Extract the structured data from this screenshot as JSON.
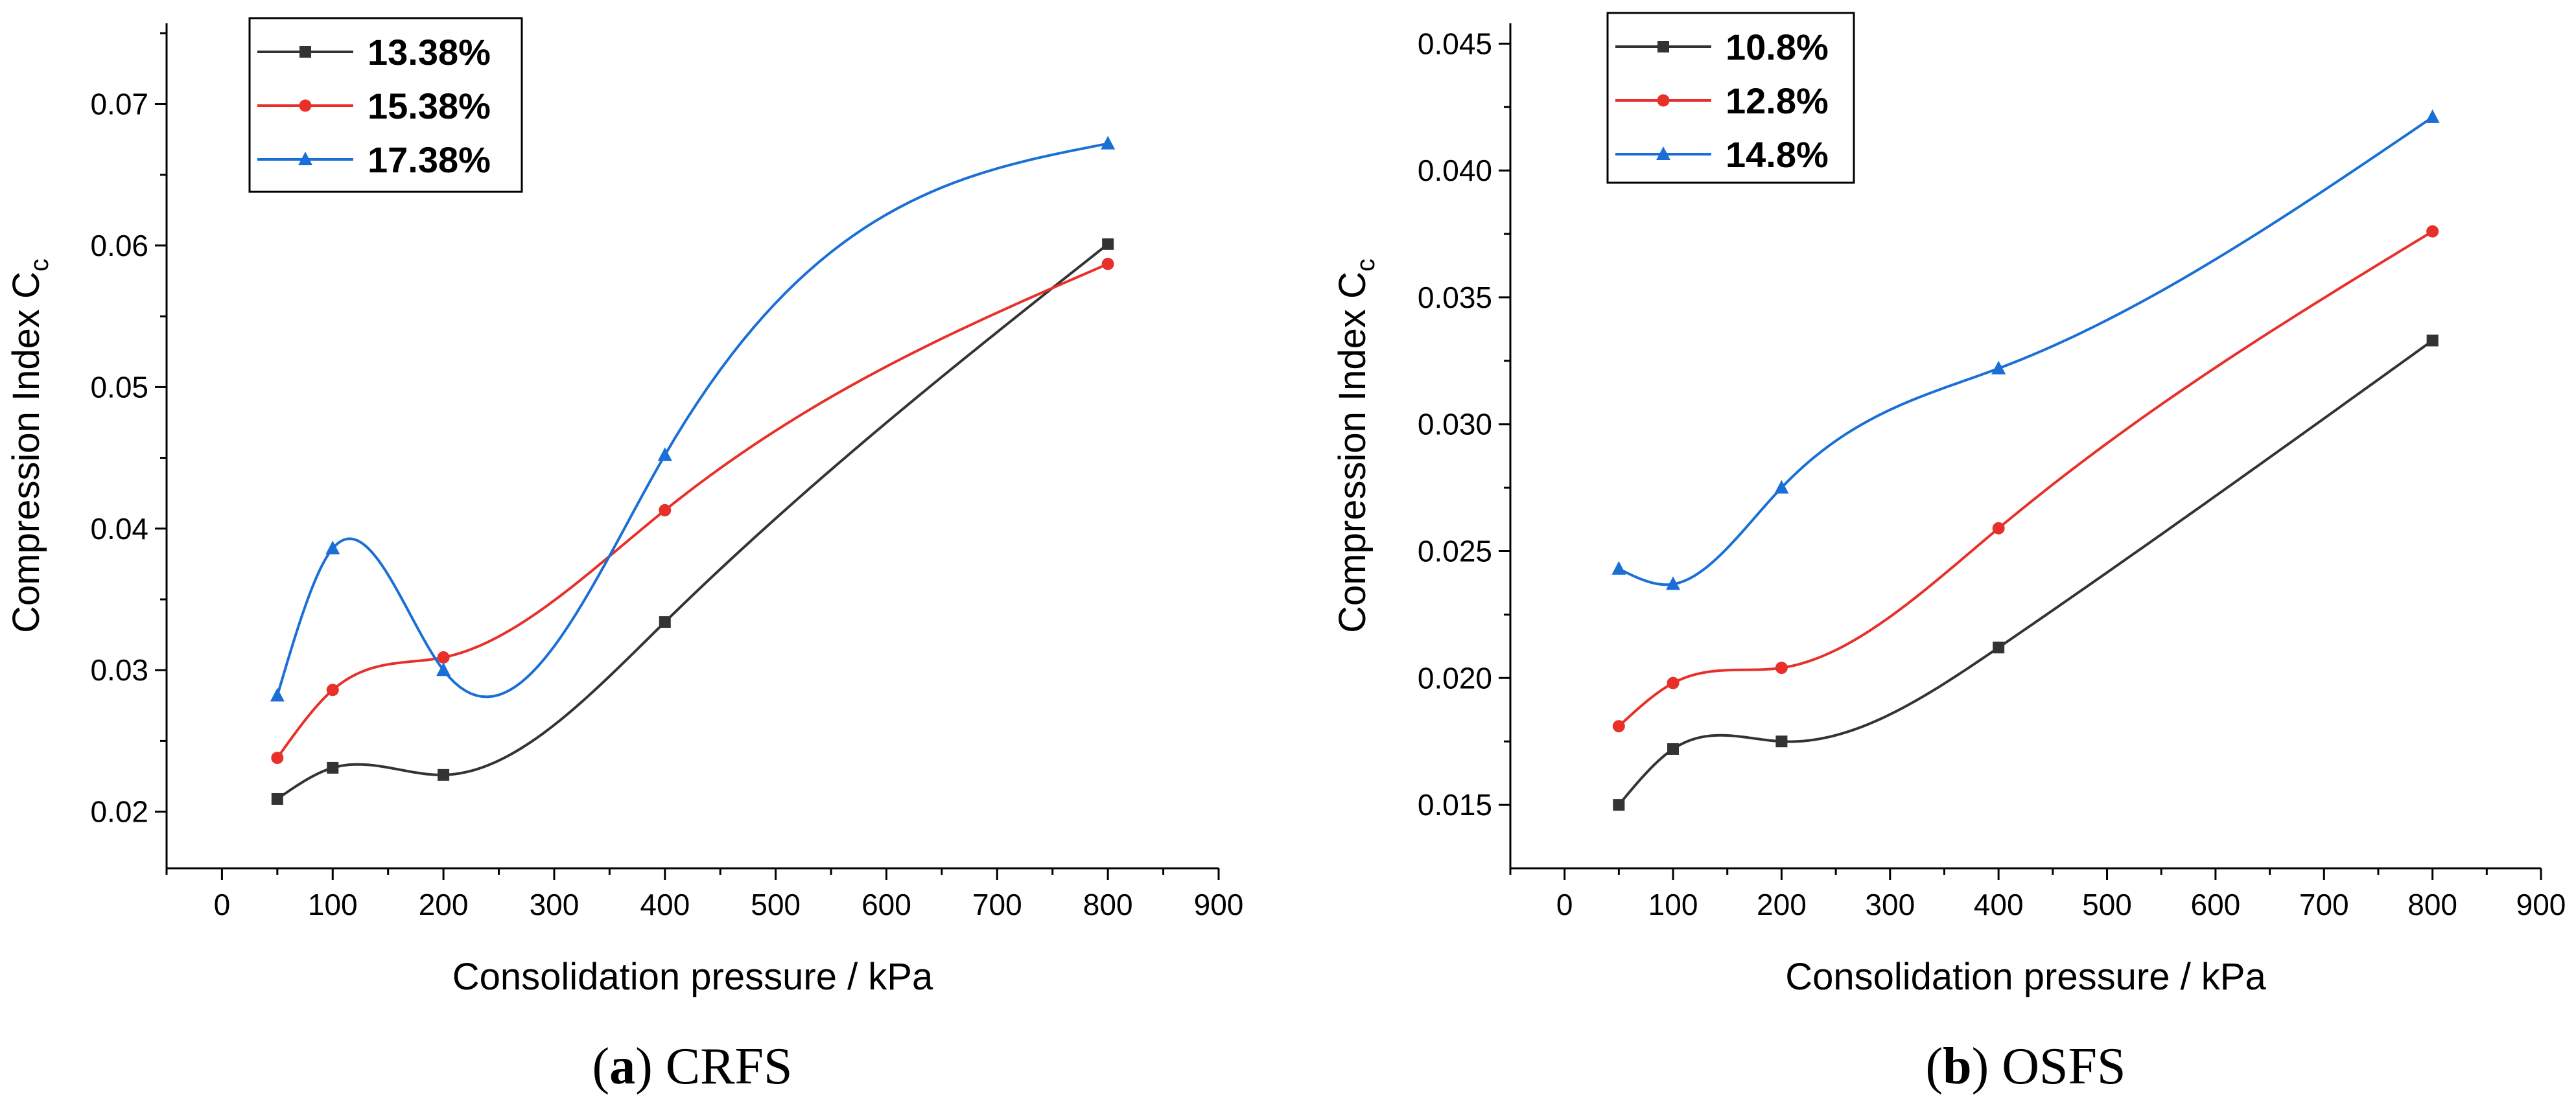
{
  "chart_data": [
    {
      "type": "line",
      "x": [
        50,
        100,
        200,
        400,
        800
      ],
      "xlabel": "Consolidation pressure / kPa",
      "ylabel": "Compression Index C",
      "ylabel_sub": "c",
      "xlim": [
        -50,
        900
      ],
      "ylim": [
        0.016,
        0.0757
      ],
      "xticks": [
        0,
        100,
        200,
        300,
        400,
        500,
        600,
        700,
        800,
        900
      ],
      "xtick_labels": [
        "0",
        "100",
        "200",
        "300",
        "400",
        "500",
        "600",
        "700",
        "800",
        "900"
      ],
      "yticks": [
        0.02,
        0.03,
        0.04,
        0.05,
        0.06,
        0.07
      ],
      "ytick_labels": [
        "0.02",
        "0.03",
        "0.04",
        "0.05",
        "0.06",
        "0.07"
      ],
      "legend_position": "top-left",
      "series": [
        {
          "name": "13.38%",
          "color": "#333333",
          "marker": "square",
          "values": [
            0.0209,
            0.0231,
            0.0226,
            0.0334,
            0.0601
          ]
        },
        {
          "name": "15.38%",
          "color": "#e8302a",
          "marker": "circle",
          "values": [
            0.0238,
            0.0286,
            0.0309,
            0.0413,
            0.0587
          ]
        },
        {
          "name": "17.38%",
          "color": "#1a6fd6",
          "marker": "triangle",
          "values": [
            0.0282,
            0.0386,
            0.03,
            0.0452,
            0.0672
          ]
        }
      ],
      "caption_letter": "a",
      "caption_text": "CRFS"
    },
    {
      "type": "line",
      "x": [
        50,
        100,
        200,
        400,
        800
      ],
      "xlabel": "Consolidation pressure / kPa",
      "ylabel": "Compression Index C",
      "ylabel_sub": "c",
      "xlim": [
        -50,
        900
      ],
      "ylim": [
        0.0125,
        0.0458
      ],
      "xticks": [
        0,
        100,
        200,
        300,
        400,
        500,
        600,
        700,
        800,
        900
      ],
      "xtick_labels": [
        "0",
        "100",
        "200",
        "300",
        "400",
        "500",
        "600",
        "700",
        "800",
        "900"
      ],
      "yticks": [
        0.015,
        0.02,
        0.025,
        0.03,
        0.035,
        0.04,
        0.045
      ],
      "ytick_labels": [
        "0.015",
        "0.020",
        "0.025",
        "0.030",
        "0.035",
        "0.040",
        "0.045"
      ],
      "legend_position": "top-left",
      "series": [
        {
          "name": "10.8%",
          "color": "#333333",
          "marker": "square",
          "values": [
            0.015,
            0.0172,
            0.0175,
            0.0212,
            0.0333
          ]
        },
        {
          "name": "12.8%",
          "color": "#e8302a",
          "marker": "circle",
          "values": [
            0.0181,
            0.0198,
            0.0204,
            0.0259,
            0.0376
          ]
        },
        {
          "name": "14.8%",
          "color": "#1a6fd6",
          "marker": "triangle",
          "values": [
            0.0243,
            0.0237,
            0.0275,
            0.0322,
            0.0421
          ]
        }
      ],
      "caption_letter": "b",
      "caption_text": "OSFS"
    }
  ]
}
